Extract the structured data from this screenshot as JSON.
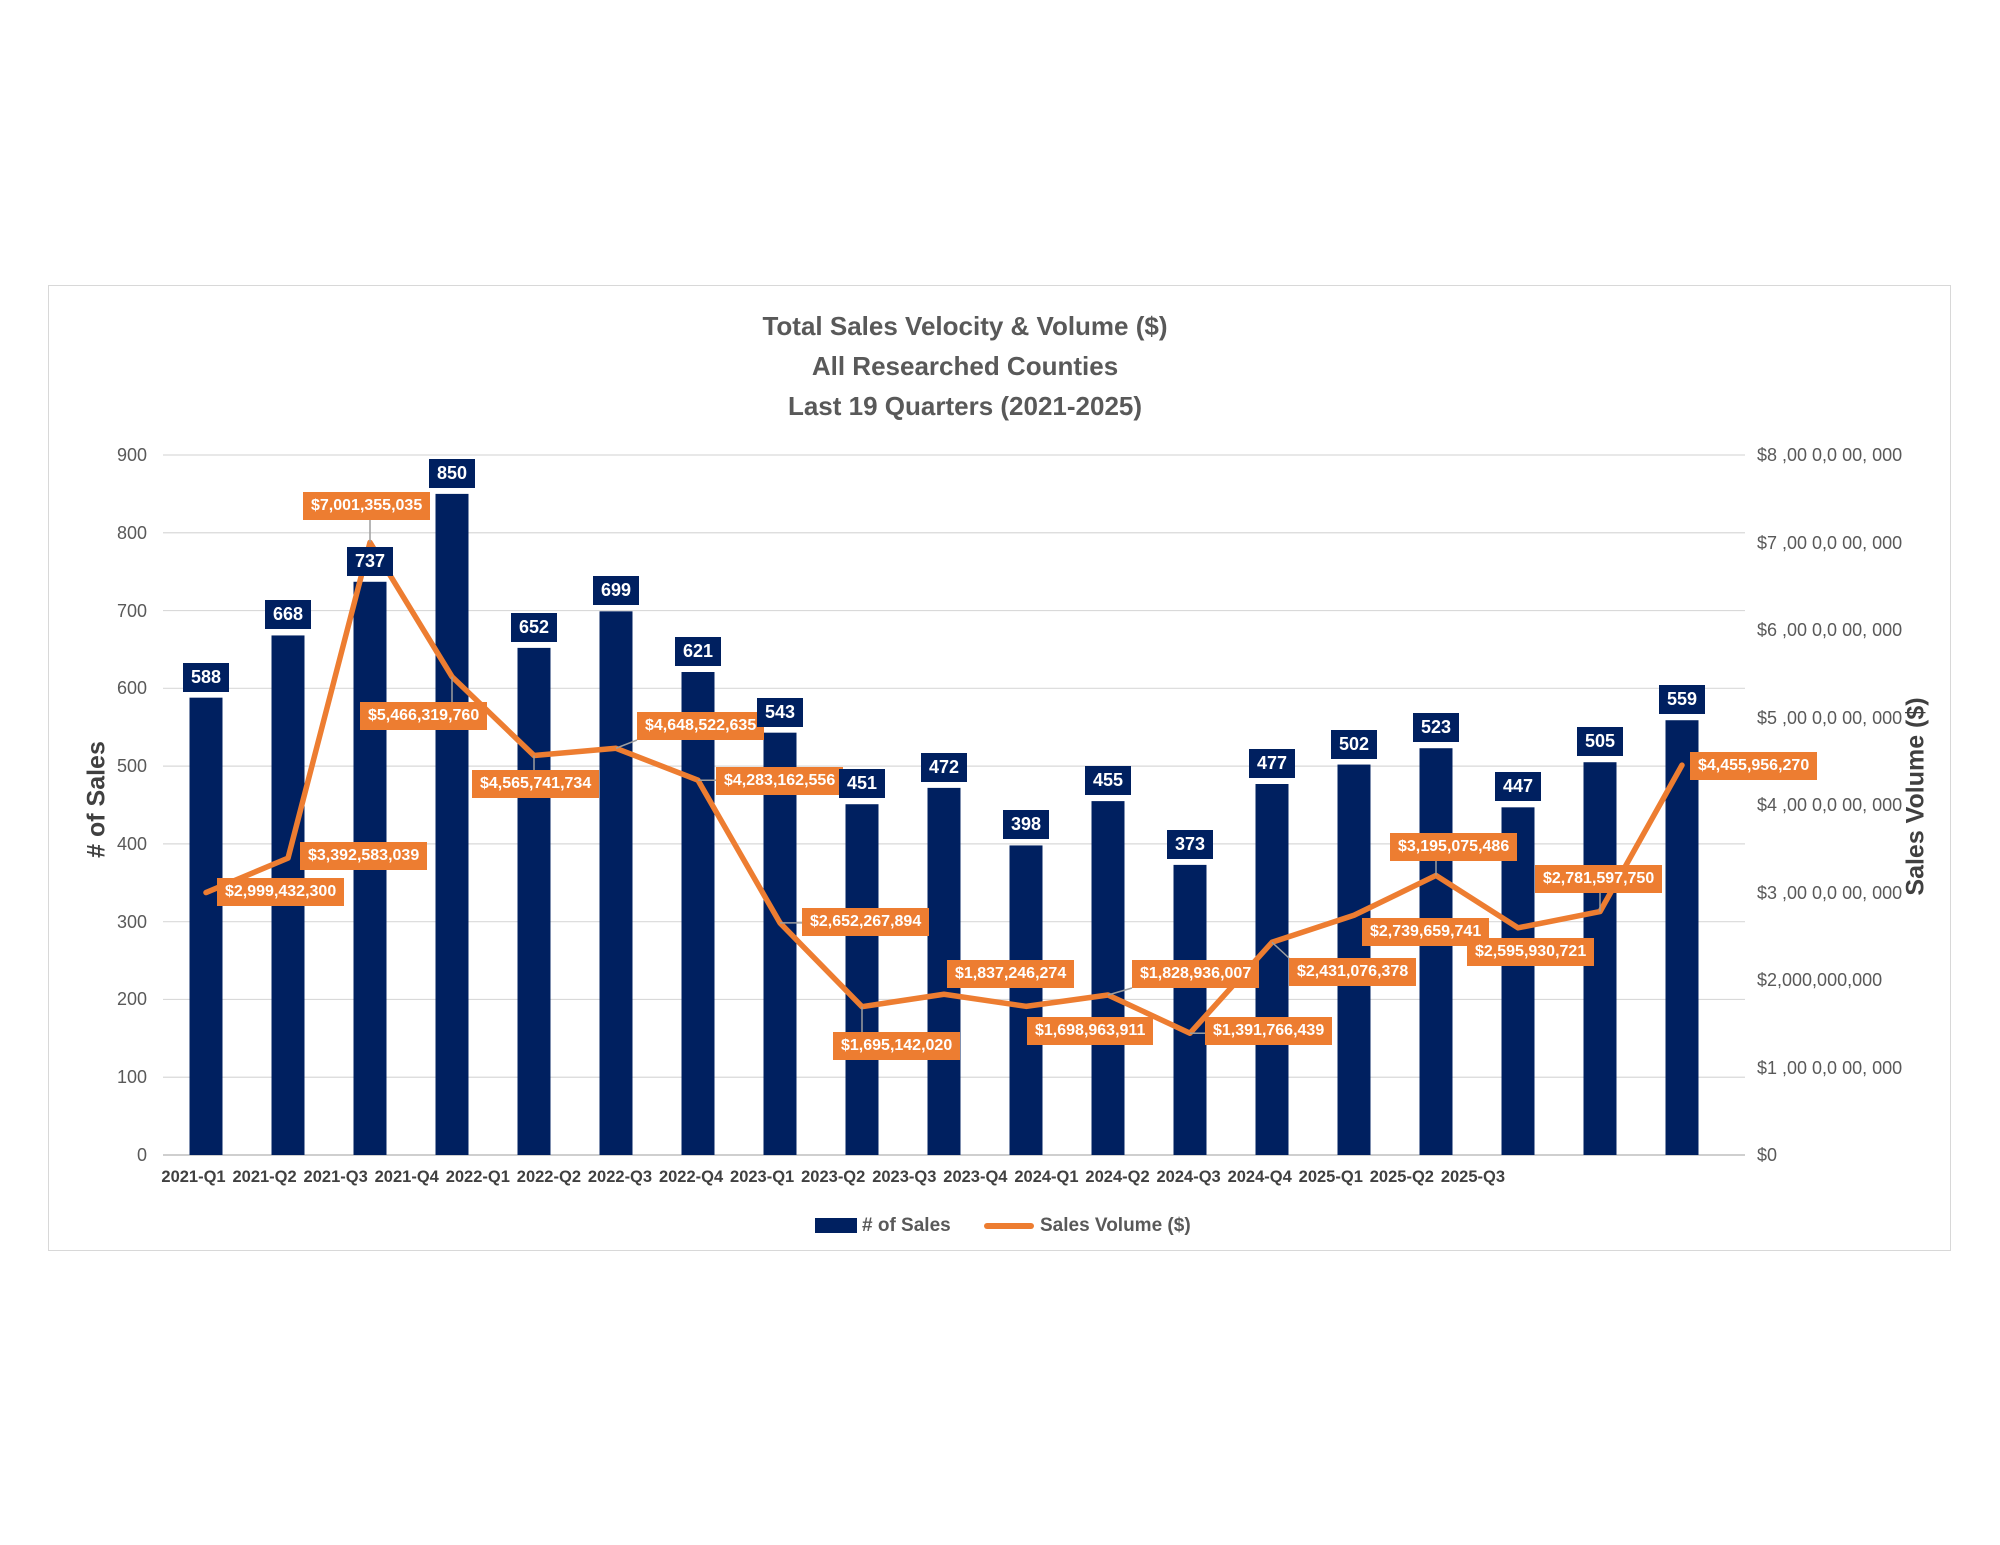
{
  "title": {
    "line1": "Total Sales Velocity & Volume ($)",
    "line2": "All Researched Counties",
    "line3": "Last 19 Quarters (2021-2025)"
  },
  "colors": {
    "navy": "#002060",
    "orange": "#ED7D31",
    "gridline": "#D9D9D9",
    "axis_line": "#BFBFBF",
    "leader_line": "#9E9E9E",
    "title_text": "#595959",
    "axis_text": "#404040"
  },
  "chart_data": {
    "type": "bar",
    "subtype": "combo-bar-line-dual-axis",
    "categories": [
      "2021-Q1",
      "2021-Q2",
      "2021-Q3",
      "2021-Q4",
      "2022-Q1",
      "2022-Q2",
      "2022-Q3",
      "2022-Q4",
      "2023-Q1",
      "2023-Q2",
      "2023-Q3",
      "2023-Q4",
      "2024-Q1",
      "2024-Q2",
      "2024-Q3",
      "2024-Q4",
      "2025-Q1",
      "2025-Q2",
      "2025-Q3"
    ],
    "series": [
      {
        "name": "# of Sales",
        "type": "bar",
        "axis": "left",
        "values": [
          588,
          668,
          737,
          850,
          652,
          699,
          621,
          543,
          451,
          472,
          398,
          455,
          373,
          477,
          502,
          523,
          447,
          505,
          559
        ]
      },
      {
        "name": "Sales Volume ($)",
        "type": "line",
        "axis": "right",
        "values": [
          2999432300,
          3392583039,
          7001355035,
          5466319760,
          4565741734,
          4648522635,
          4283162556,
          2652267894,
          1695142020,
          1837246274,
          1698963911,
          1828936007,
          1391766439,
          2431076378,
          2739659741,
          3195075486,
          2595930721,
          2781597750,
          4455956270
        ],
        "labels": [
          "$2,999,432,300",
          "$3,392,583,039",
          "$7,001,355,035",
          "$5,466,319,760",
          "$4,565,741,734",
          "$4,648,522,635",
          "$4,283,162,556",
          "$2,652,267,894",
          "$1,695,142,020",
          "$1,837,246,274",
          "$1,698,963,911",
          "$1,828,936,007",
          "$1,391,766,439",
          "$2,431,076,378",
          "$2,739,659,741",
          "$3,195,075,486",
          "$2,595,930,721",
          "$2,781,597,750",
          "$4,455,956,270"
        ]
      }
    ],
    "left_axis": {
      "title": "# of Sales",
      "min": 0,
      "max": 900,
      "ticks": [
        "900",
        "800",
        "700",
        "600",
        "500",
        "400",
        "300",
        "200",
        "100",
        "0"
      ]
    },
    "right_axis": {
      "title": "Sales Volume ($)",
      "min": 0,
      "max": 8000000000,
      "ticks": [
        "$8 ,00 0,0 00, 000",
        "$7 ,00 0,0 00, 000",
        "$6 ,00 0,0 00, 000",
        "$5 ,00 0,0 00, 000",
        "$4 ,00 0,0 00, 000",
        "$3 ,00 0,0 00, 000",
        "$2,000,000,000",
        "$1 ,00 0,0 00, 000",
        "$0"
      ]
    },
    "legend": [
      "# of Sales",
      "Sales Volume ($)"
    ],
    "grid": "horizontal",
    "legend_position": "bottom"
  }
}
